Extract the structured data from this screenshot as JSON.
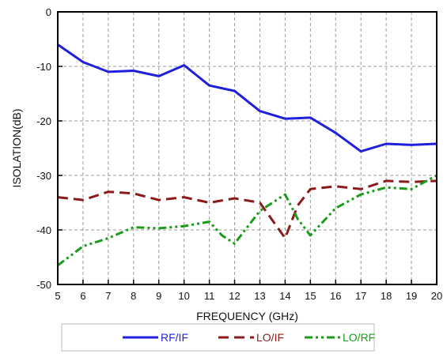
{
  "chart_data": {
    "type": "line",
    "xlabel": "FREQUENCY (GHz)",
    "ylabel": "ISOLATION(dB)",
    "xlim": [
      5,
      20
    ],
    "ylim": [
      -50,
      0
    ],
    "x_ticks": [
      5,
      6,
      7,
      8,
      9,
      10,
      11,
      12,
      13,
      14,
      15,
      16,
      17,
      18,
      19,
      20
    ],
    "y_ticks": [
      0,
      -10,
      -20,
      -30,
      -40,
      -50
    ],
    "grid": true,
    "legend_position": "bottom",
    "series": [
      {
        "name": "RF/IF",
        "color": "#1f1fdc",
        "style": "solid",
        "x": [
          5,
          6,
          7,
          8,
          9,
          10,
          11,
          12,
          13,
          14,
          15,
          16,
          17,
          18,
          19,
          20
        ],
        "values": [
          -6,
          -9.2,
          -11,
          -10.8,
          -11.8,
          -9.8,
          -13.5,
          -14.5,
          -18.2,
          -19.6,
          -19.4,
          -22.2,
          -25.6,
          -24.2,
          -24.4,
          -24.2
        ]
      },
      {
        "name": "LO/IF",
        "color": "#8b1a1a",
        "style": "dashed",
        "x": [
          5,
          6,
          7,
          8,
          9,
          10,
          11,
          12,
          13,
          14,
          14.5,
          15,
          16,
          17,
          18,
          19,
          20
        ],
        "values": [
          -34,
          -34.5,
          -33,
          -33.3,
          -34.5,
          -34,
          -35,
          -34.2,
          -35,
          -41.5,
          -35.5,
          -32.5,
          -32,
          -32.5,
          -31,
          -31.2,
          -31
        ]
      },
      {
        "name": "LO/RF",
        "color": "#1a9c1a",
        "style": "dash-dot",
        "x": [
          5,
          6,
          7,
          8,
          9,
          10,
          11,
          11.5,
          12,
          13,
          14,
          14.5,
          15,
          16,
          17,
          18,
          19,
          20
        ],
        "values": [
          -46.5,
          -43,
          -41.5,
          -39.5,
          -39.7,
          -39.3,
          -38.5,
          -41,
          -42.5,
          -36.5,
          -33.5,
          -38,
          -41,
          -36,
          -33.5,
          -32.2,
          -32.5,
          -30
        ]
      }
    ]
  }
}
